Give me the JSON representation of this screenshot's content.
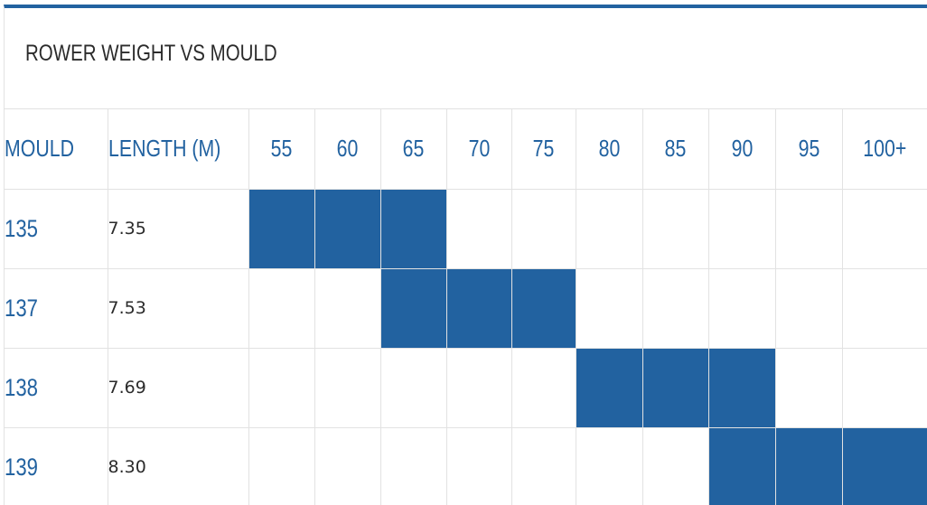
{
  "table": {
    "title": "ROWER WEIGHT VS MOULD",
    "header": {
      "mould": "MOULD",
      "length": "LENGTH (M)",
      "weights": [
        "55",
        "60",
        "65",
        "70",
        "75",
        "80",
        "85",
        "90",
        "95",
        "100+"
      ]
    },
    "rows": [
      {
        "mould": "135",
        "length": "7.35",
        "filled": [
          "55",
          "60",
          "65"
        ]
      },
      {
        "mould": "137",
        "length": "7.53",
        "filled": [
          "65",
          "70",
          "75"
        ]
      },
      {
        "mould": "138",
        "length": "7.69",
        "filled": [
          "80",
          "85",
          "90"
        ]
      },
      {
        "mould": "139",
        "length": "8.30",
        "filled": [
          "90",
          "95",
          "100+"
        ]
      }
    ],
    "colors": {
      "accent": "#2262a0",
      "grid": "#e2e2e2",
      "text": "#2b2b2b"
    }
  }
}
